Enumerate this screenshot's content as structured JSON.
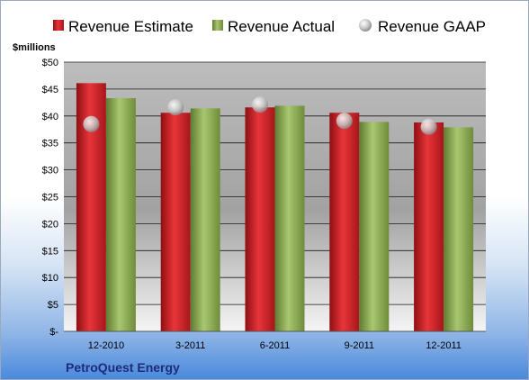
{
  "chart_data": {
    "type": "bar",
    "company": "PetroQuest Energy",
    "unit_label": "$millions",
    "categories": [
      "12-2010",
      "3-2011",
      "6-2011",
      "9-2011",
      "12-2011"
    ],
    "series": [
      {
        "name": "Revenue Estimate",
        "kind": "bar",
        "color": "#cc1f24",
        "values": [
          46.1,
          40.6,
          41.6,
          40.6,
          38.8
        ]
      },
      {
        "name": "Revenue Actual",
        "kind": "bar",
        "color": "#8fae54",
        "values": [
          43.3,
          41.4,
          41.9,
          38.9,
          37.9
        ]
      },
      {
        "name": "Revenue GAAP",
        "kind": "marker",
        "color": "#b8b8b8",
        "values": [
          38.5,
          41.6,
          42.1,
          39.1,
          38.0
        ]
      }
    ],
    "ylim": [
      0,
      50
    ],
    "yticks": [
      "$-",
      "$5",
      "$10",
      "$15",
      "$20",
      "$25",
      "$30",
      "$35",
      "$40",
      "$45",
      "$50"
    ],
    "grid": true,
    "legend_position": "top"
  }
}
